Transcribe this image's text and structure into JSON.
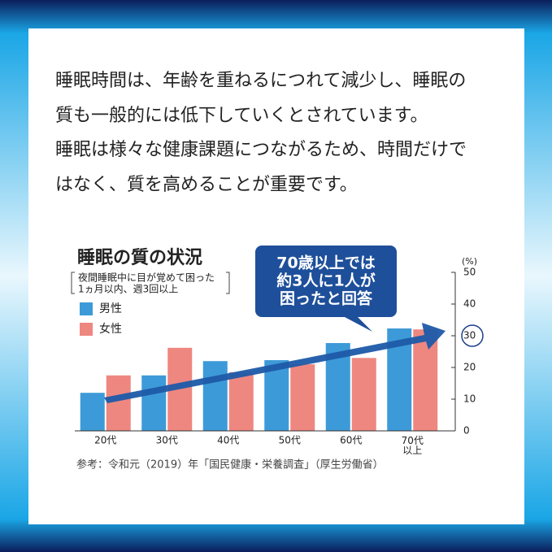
{
  "text": {
    "lines": [
      "睡眠時間は、年齢を重ねるにつれて減少し、睡眠の",
      "質も一般的には低下していくとされています。",
      "睡眠は様々な健康課題につながるため、時間だけで",
      "はなく、質を高めることが重要です。"
    ]
  },
  "chart_data": {
    "type": "bar",
    "title": "睡眠の質の状況",
    "subtitle_lines": [
      "夜間睡眠中に目が覚めて困った",
      "1ヵ月以内、週3回以上"
    ],
    "y_unit": "(%)",
    "annotation_lines": [
      "70歳以上では",
      "約3人に1人が",
      "困ったと回答"
    ],
    "categories": [
      "20代",
      "30代",
      "40代",
      "50代",
      "60代",
      "70代\n以上"
    ],
    "series": [
      {
        "name": "男性",
        "color": "#3d9ad8",
        "values": [
          12,
          17.5,
          22,
          22.3,
          27.7,
          32.3
        ]
      },
      {
        "name": "女性",
        "color": "#ee8780",
        "values": [
          17.5,
          26.2,
          18.5,
          21,
          23,
          32
        ]
      }
    ],
    "ylim": [
      0,
      50
    ],
    "yticks": [
      0,
      10,
      20,
      30,
      40,
      50
    ],
    "source": "参考：令和元（2019）年「国民健康・栄養調査」（厚生労働省）"
  }
}
